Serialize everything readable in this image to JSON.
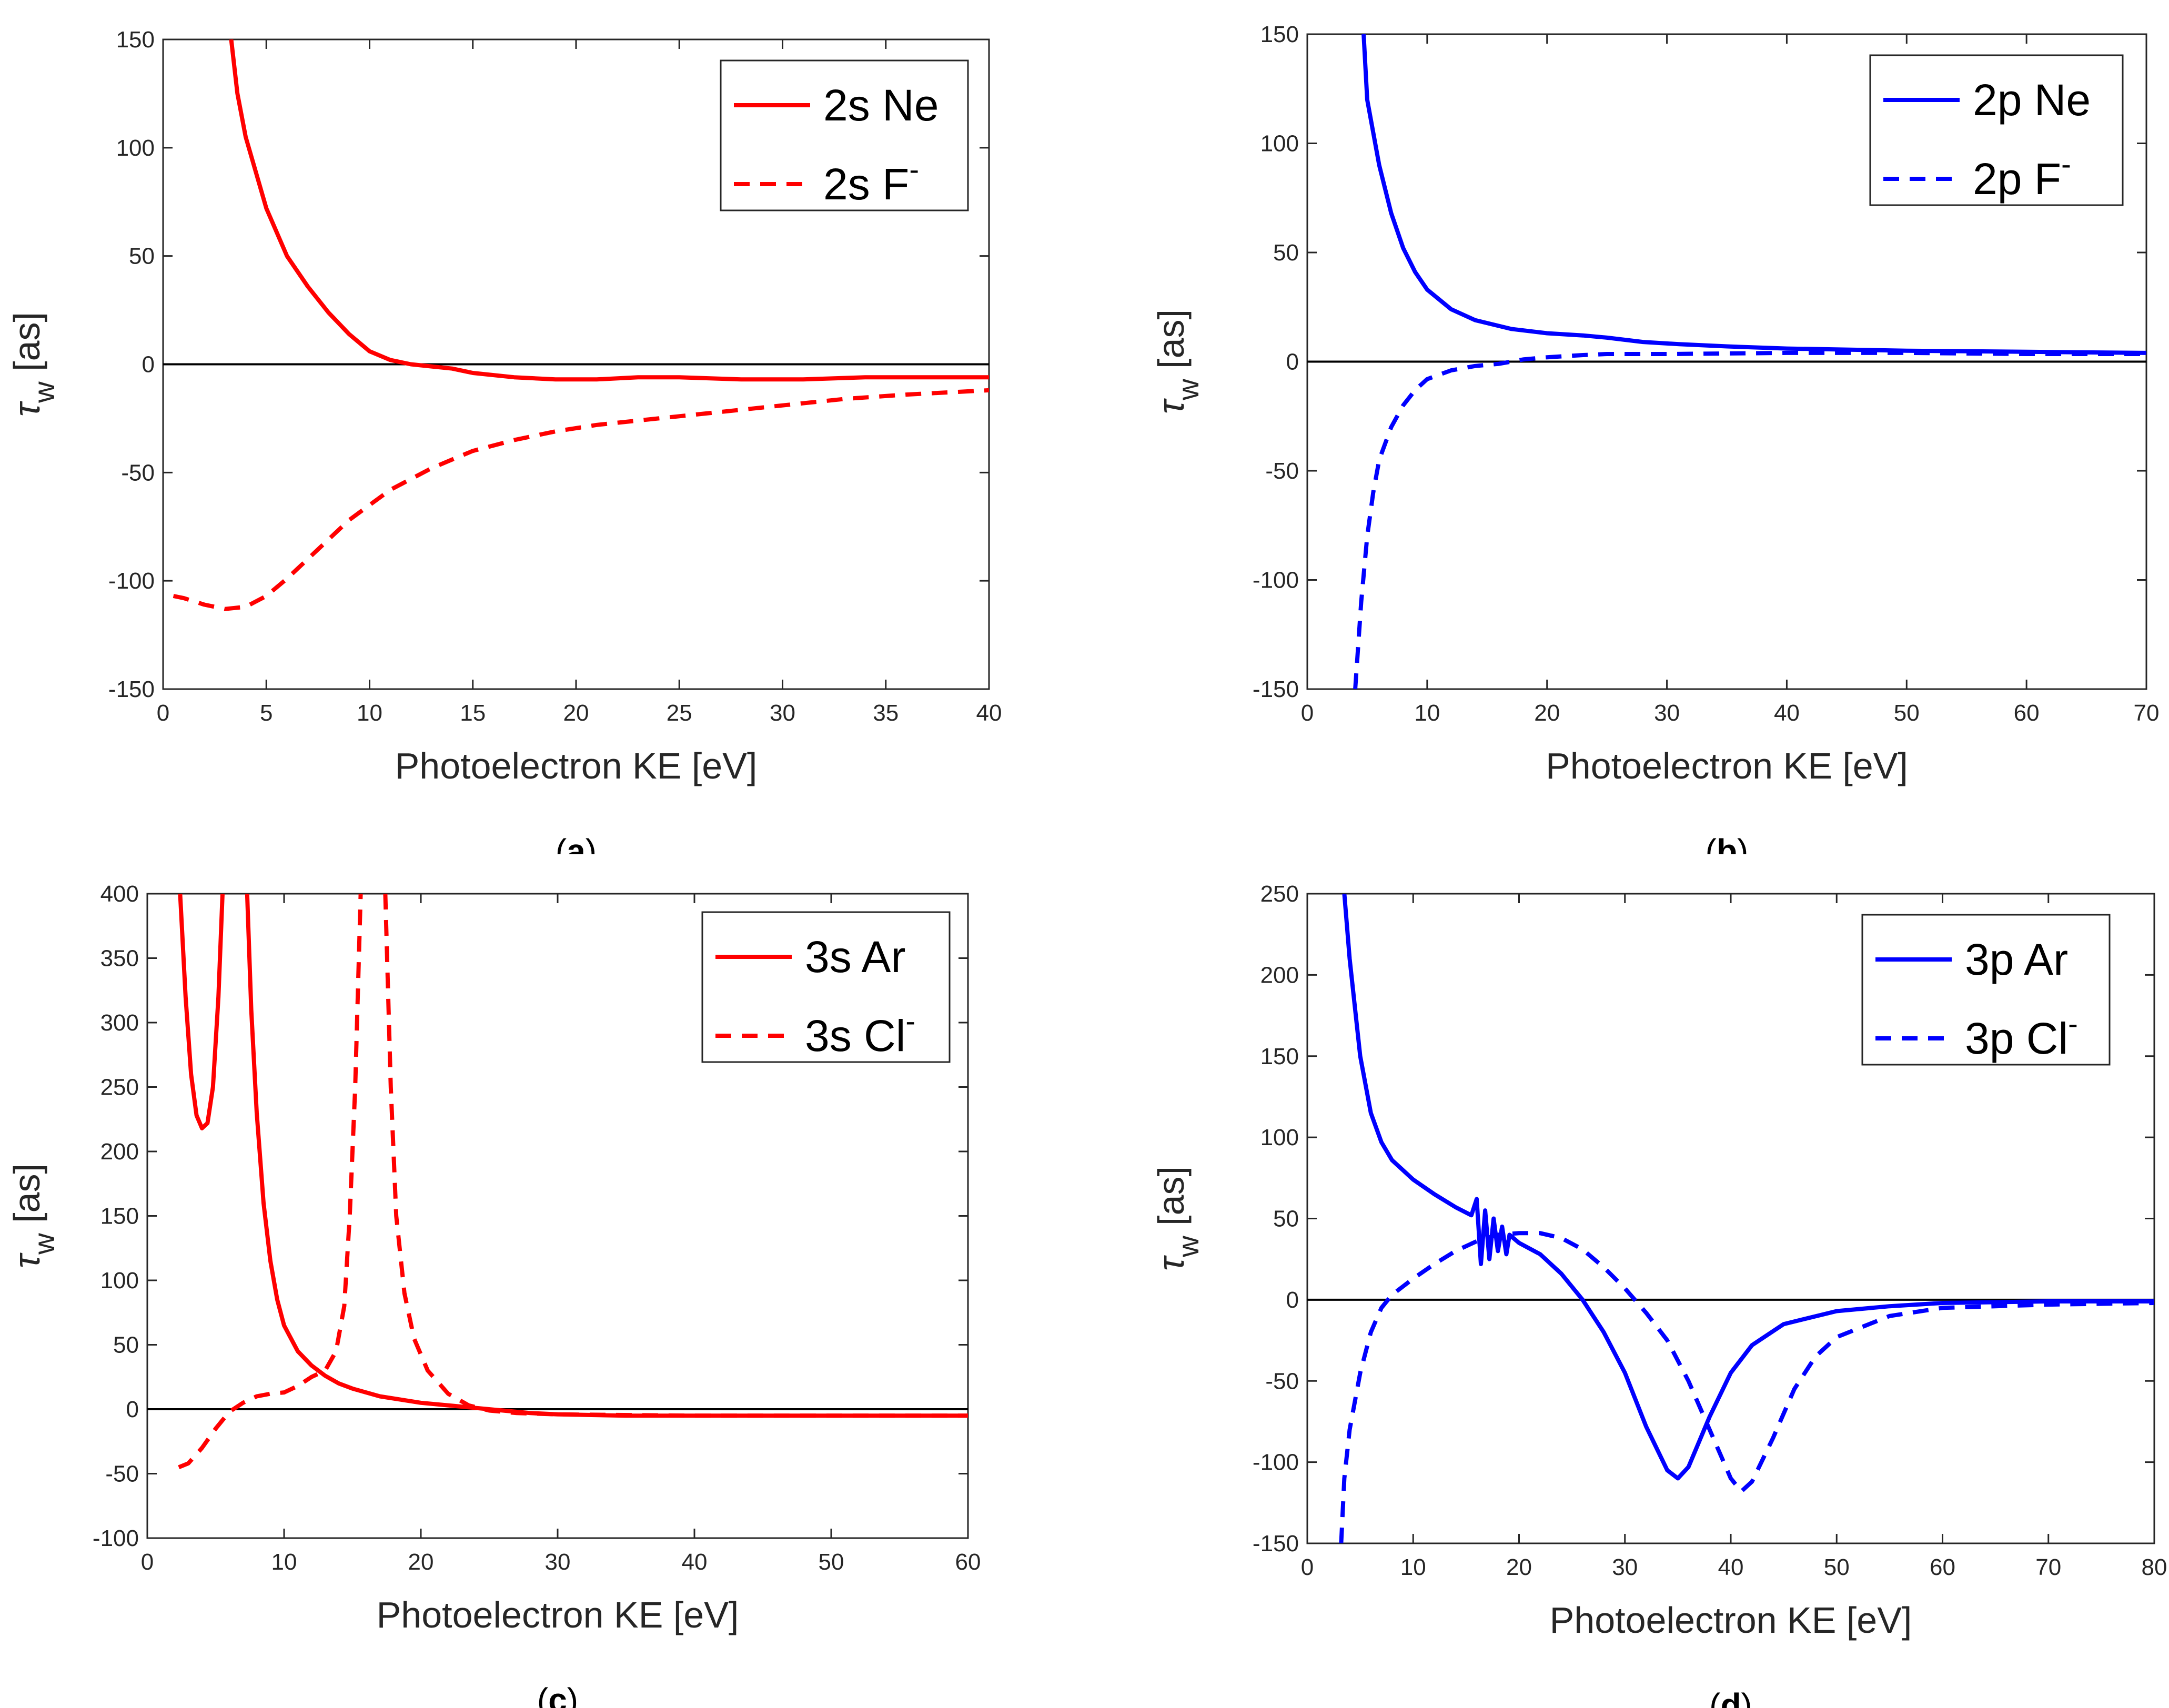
{
  "chart_data": [
    {
      "type": "line",
      "panel_label": "a",
      "xlabel": "Photoelectron KE [eV]",
      "ylabel": "τ_w [as]",
      "xlim": [
        0,
        40
      ],
      "ylim": [
        -150,
        150
      ],
      "xticks": [
        0,
        5,
        10,
        15,
        20,
        25,
        30,
        35,
        40
      ],
      "yticks": [
        -150,
        -100,
        -50,
        0,
        50,
        100,
        150
      ],
      "grid": false,
      "legend": "top-right",
      "zero_line": true,
      "series": [
        {
          "name": "2s Ne",
          "color": "#ff0000",
          "dash": "solid",
          "points": [
            [
              3.3,
              150
            ],
            [
              3.6,
              125
            ],
            [
              4,
              105
            ],
            [
              5,
              72
            ],
            [
              6,
              50
            ],
            [
              7,
              36
            ],
            [
              8,
              24
            ],
            [
              9,
              14
            ],
            [
              10,
              6
            ],
            [
              11,
              2
            ],
            [
              12,
              0
            ],
            [
              13,
              -1
            ],
            [
              14,
              -2
            ],
            [
              15,
              -4
            ],
            [
              17,
              -6
            ],
            [
              19,
              -7
            ],
            [
              21,
              -7
            ],
            [
              23,
              -6
            ],
            [
              25,
              -6
            ],
            [
              28,
              -7
            ],
            [
              31,
              -7
            ],
            [
              34,
              -6
            ],
            [
              37,
              -6
            ],
            [
              40,
              -6
            ]
          ]
        },
        {
          "name": "2s F⁻",
          "color": "#ff0000",
          "dash": "dashed",
          "points": [
            [
              0.5,
              -107
            ],
            [
              1,
              -108
            ],
            [
              2,
              -111
            ],
            [
              3,
              -113
            ],
            [
              4,
              -112
            ],
            [
              5,
              -107
            ],
            [
              6,
              -99
            ],
            [
              7,
              -90
            ],
            [
              8,
              -81
            ],
            [
              9,
              -72
            ],
            [
              10,
              -65
            ],
            [
              11,
              -58
            ],
            [
              12,
              -53
            ],
            [
              13,
              -48
            ],
            [
              14,
              -44
            ],
            [
              15,
              -40
            ],
            [
              17,
              -35
            ],
            [
              19,
              -31
            ],
            [
              21,
              -28
            ],
            [
              24,
              -25
            ],
            [
              27,
              -22
            ],
            [
              30,
              -19
            ],
            [
              33,
              -16
            ],
            [
              36,
              -14
            ],
            [
              40,
              -12
            ]
          ]
        }
      ]
    },
    {
      "type": "line",
      "panel_label": "b",
      "xlabel": "Photoelectron KE [eV]",
      "ylabel": "τ_w [as]",
      "xlim": [
        0,
        70
      ],
      "ylim": [
        -150,
        150
      ],
      "xticks": [
        0,
        10,
        20,
        30,
        40,
        50,
        60,
        70
      ],
      "yticks": [
        -150,
        -100,
        -50,
        0,
        50,
        100,
        150
      ],
      "grid": false,
      "legend": "top-right",
      "zero_line": true,
      "series": [
        {
          "name": "2p Ne",
          "color": "#0000ff",
          "dash": "solid",
          "points": [
            [
              4.7,
              150
            ],
            [
              5,
              120
            ],
            [
              6,
              90
            ],
            [
              7,
              68
            ],
            [
              8,
              52
            ],
            [
              9,
              41
            ],
            [
              10,
              33
            ],
            [
              12,
              24
            ],
            [
              14,
              19
            ],
            [
              17,
              15
            ],
            [
              20,
              13
            ],
            [
              23,
              12
            ],
            [
              25,
              11
            ],
            [
              28,
              9
            ],
            [
              31,
              8
            ],
            [
              35,
              7
            ],
            [
              40,
              6
            ],
            [
              50,
              5
            ],
            [
              60,
              4.5
            ],
            [
              70,
              4
            ]
          ]
        },
        {
          "name": "2p F⁻",
          "color": "#0000ff",
          "dash": "dashed",
          "points": [
            [
              4,
              -150
            ],
            [
              4.5,
              -110
            ],
            [
              5,
              -80
            ],
            [
              5.5,
              -60
            ],
            [
              6,
              -45
            ],
            [
              7,
              -30
            ],
            [
              8,
              -20
            ],
            [
              9,
              -13
            ],
            [
              10,
              -8
            ],
            [
              12,
              -4
            ],
            [
              14,
              -2
            ],
            [
              16,
              -1
            ],
            [
              18,
              1
            ],
            [
              20,
              2
            ],
            [
              23,
              3
            ],
            [
              25,
              3.5
            ],
            [
              30,
              3.5
            ],
            [
              40,
              4
            ],
            [
              50,
              4
            ],
            [
              60,
              3.5
            ],
            [
              70,
              3.5
            ]
          ]
        }
      ]
    },
    {
      "type": "line",
      "panel_label": "c",
      "xlabel": "Photoelectron KE [eV]",
      "ylabel": "τ_w [as]",
      "xlim": [
        0,
        60
      ],
      "ylim": [
        -100,
        400
      ],
      "xticks": [
        0,
        10,
        20,
        30,
        40,
        50,
        60
      ],
      "yticks": [
        -100,
        -50,
        0,
        50,
        100,
        150,
        200,
        250,
        300,
        350,
        400
      ],
      "grid": false,
      "legend": "top-right",
      "zero_line": true,
      "series": [
        {
          "name": "3s Ar",
          "color": "#ff0000",
          "dash": "solid",
          "points": [
            [
              2.4,
              400
            ],
            [
              2.8,
              320
            ],
            [
              3.2,
              260
            ],
            [
              3.6,
              228
            ],
            [
              4,
              218
            ],
            [
              4.4,
              222
            ],
            [
              4.8,
              250
            ],
            [
              5.2,
              320
            ],
            [
              5.5,
              400
            ],
            [
              null,
              null
            ],
            [
              7.3,
              400
            ],
            [
              7.6,
              310
            ],
            [
              8,
              230
            ],
            [
              8.5,
              160
            ],
            [
              9,
              115
            ],
            [
              9.5,
              85
            ],
            [
              10,
              65
            ],
            [
              11,
              45
            ],
            [
              12,
              34
            ],
            [
              13,
              26
            ],
            [
              14,
              20
            ],
            [
              15,
              16
            ],
            [
              17,
              10
            ],
            [
              20,
              5
            ],
            [
              23,
              2
            ],
            [
              26,
              -1
            ],
            [
              28,
              -3
            ],
            [
              30,
              -4
            ],
            [
              35,
              -5
            ],
            [
              40,
              -5
            ],
            [
              50,
              -5
            ],
            [
              60,
              -5
            ]
          ]
        },
        {
          "name": "3s Cl⁻",
          "color": "#ff0000",
          "dash": "dashed",
          "points": [
            [
              2.3,
              -45
            ],
            [
              3,
              -42
            ],
            [
              4,
              -30
            ],
            [
              5,
              -15
            ],
            [
              6,
              -2
            ],
            [
              7,
              5
            ],
            [
              8,
              10
            ],
            [
              9,
              12
            ],
            [
              10,
              13
            ],
            [
              11,
              18
            ],
            [
              12,
              25
            ],
            [
              13,
              30
            ],
            [
              13.8,
              45
            ],
            [
              14.4,
              80
            ],
            [
              14.8,
              150
            ],
            [
              15.2,
              250
            ],
            [
              15.6,
              400
            ],
            [
              null,
              null
            ],
            [
              17.4,
              400
            ],
            [
              17.8,
              250
            ],
            [
              18.2,
              150
            ],
            [
              18.8,
              90
            ],
            [
              19.5,
              55
            ],
            [
              20.5,
              30
            ],
            [
              22,
              12
            ],
            [
              23.5,
              3
            ],
            [
              25,
              -1
            ],
            [
              27,
              -3
            ],
            [
              30,
              -4
            ],
            [
              40,
              -5
            ],
            [
              50,
              -5
            ],
            [
              60,
              -5
            ]
          ]
        }
      ]
    },
    {
      "type": "line",
      "panel_label": "d",
      "xlabel": "Photoelectron KE [eV]",
      "ylabel": "τ_w [as]",
      "xlim": [
        0,
        80
      ],
      "ylim": [
        -150,
        250
      ],
      "xticks": [
        0,
        10,
        20,
        30,
        40,
        50,
        60,
        70,
        80
      ],
      "yticks": [
        -150,
        -100,
        -50,
        0,
        50,
        100,
        150,
        200,
        250
      ],
      "grid": false,
      "legend": "top-right",
      "zero_line": true,
      "series": [
        {
          "name": "3p Ar",
          "color": "#0000ff",
          "dash": "solid",
          "points": [
            [
              3.5,
              250
            ],
            [
              4,
              210
            ],
            [
              5,
              150
            ],
            [
              6,
              115
            ],
            [
              7,
              97
            ],
            [
              8,
              86
            ],
            [
              10,
              74
            ],
            [
              12,
              65
            ],
            [
              14,
              57
            ],
            [
              15.5,
              52
            ],
            [
              16,
              62
            ],
            [
              16.4,
              22
            ],
            [
              16.8,
              55
            ],
            [
              17.2,
              25
            ],
            [
              17.6,
              50
            ],
            [
              18,
              30
            ],
            [
              18.4,
              45
            ],
            [
              18.8,
              28
            ],
            [
              19.1,
              40
            ],
            [
              20,
              35
            ],
            [
              22,
              28
            ],
            [
              24,
              16
            ],
            [
              26,
              0
            ],
            [
              28,
              -20
            ],
            [
              30,
              -45
            ],
            [
              32,
              -78
            ],
            [
              34,
              -105
            ],
            [
              35,
              -110
            ],
            [
              36,
              -103
            ],
            [
              38,
              -72
            ],
            [
              40,
              -45
            ],
            [
              42,
              -28
            ],
            [
              45,
              -15
            ],
            [
              50,
              -7
            ],
            [
              55,
              -4
            ],
            [
              60,
              -2
            ],
            [
              70,
              -1
            ],
            [
              80,
              -1
            ]
          ]
        },
        {
          "name": "3p Cl⁻",
          "color": "#0000ff",
          "dash": "dashed",
          "points": [
            [
              3.2,
              -150
            ],
            [
              3.5,
              -110
            ],
            [
              4,
              -80
            ],
            [
              5,
              -45
            ],
            [
              6,
              -20
            ],
            [
              7,
              -5
            ],
            [
              8,
              3
            ],
            [
              10,
              13
            ],
            [
              12,
              22
            ],
            [
              14,
              30
            ],
            [
              16,
              36
            ],
            [
              18,
              40
            ],
            [
              20,
              41
            ],
            [
              22,
              41
            ],
            [
              24,
              38
            ],
            [
              26,
              31
            ],
            [
              28,
              20
            ],
            [
              30,
              7
            ],
            [
              32,
              -8
            ],
            [
              34,
              -25
            ],
            [
              36,
              -50
            ],
            [
              38,
              -80
            ],
            [
              40,
              -110
            ],
            [
              41,
              -118
            ],
            [
              42,
              -112
            ],
            [
              44,
              -85
            ],
            [
              46,
              -55
            ],
            [
              48,
              -35
            ],
            [
              50,
              -23
            ],
            [
              55,
              -10
            ],
            [
              60,
              -5
            ],
            [
              70,
              -3
            ],
            [
              80,
              -2
            ]
          ]
        }
      ]
    }
  ]
}
